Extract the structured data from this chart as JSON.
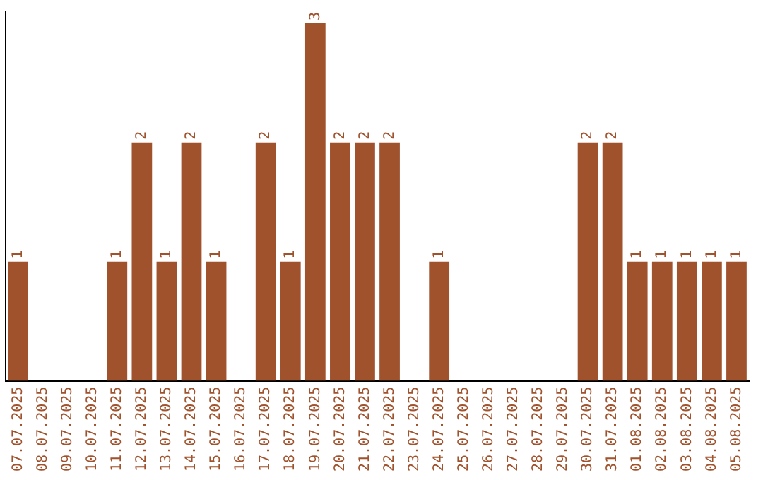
{
  "chart_data": {
    "type": "bar",
    "categories": [
      "07.07.2025",
      "08.07.2025",
      "09.07.2025",
      "10.07.2025",
      "11.07.2025",
      "12.07.2025",
      "13.07.2025",
      "14.07.2025",
      "15.07.2025",
      "16.07.2025",
      "17.07.2025",
      "18.07.2025",
      "19.07.2025",
      "20.07.2025",
      "21.07.2025",
      "22.07.2025",
      "23.07.2025",
      "24.07.2025",
      "25.07.2025",
      "26.07.2025",
      "27.07.2025",
      "28.07.2025",
      "29.07.2025",
      "30.07.2025",
      "31.07.2025",
      "01.08.2025",
      "02.08.2025",
      "03.08.2025",
      "04.08.2025",
      "05.08.2025"
    ],
    "values": [
      1,
      0,
      0,
      0,
      1,
      2,
      1,
      2,
      1,
      0,
      2,
      1,
      3,
      2,
      2,
      2,
      0,
      1,
      0,
      0,
      0,
      0,
      0,
      2,
      2,
      1,
      1,
      1,
      1,
      1
    ],
    "value_labels": [
      "1",
      null,
      null,
      null,
      "1",
      "2",
      "1",
      "2",
      "1",
      null,
      "2",
      "1",
      "3",
      "2",
      "2",
      "2",
      null,
      "1",
      null,
      null,
      null,
      null,
      null,
      "2",
      "2",
      "1",
      "1",
      "1",
      "1",
      "1"
    ],
    "color": "#a0522d",
    "ylim": [
      0,
      3.1
    ],
    "tick_labels": "x",
    "grid": false,
    "legend": false
  }
}
